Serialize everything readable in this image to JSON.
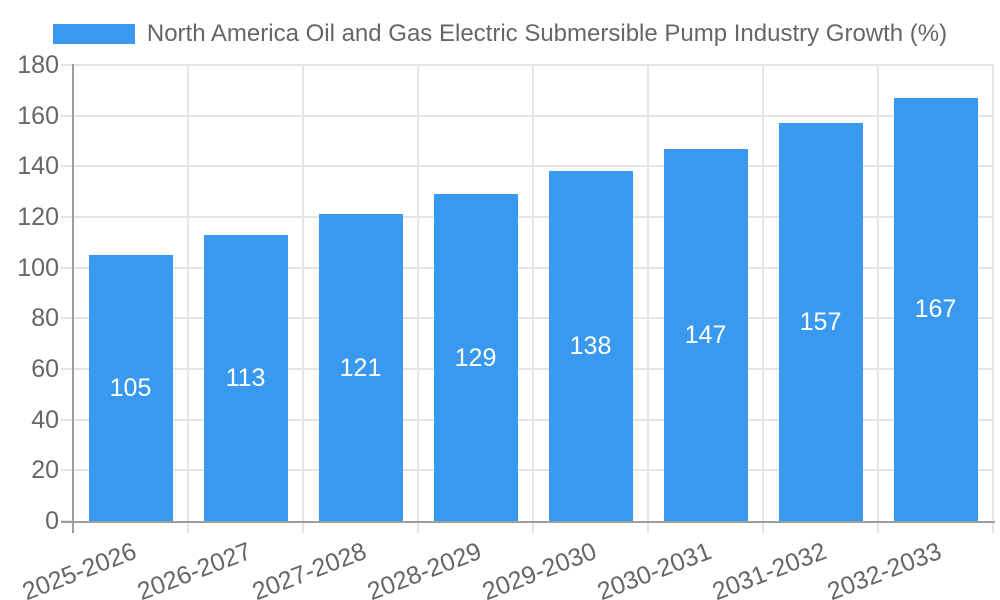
{
  "legend": {
    "label": "North America Oil and Gas Electric Submersible Pump Industry Growth (%)"
  },
  "chart_data": {
    "type": "bar",
    "title": "North America Oil and Gas Electric Submersible Pump Industry Growth (%)",
    "categories": [
      "2025-2026",
      "2026-2027",
      "2027-2028",
      "2028-2029",
      "2029-2030",
      "2030-2031",
      "2031-2032",
      "2032-2033"
    ],
    "values": [
      105,
      113,
      121,
      129,
      138,
      147,
      157,
      167
    ],
    "value_labels": [
      "105",
      "113",
      "121",
      "129",
      "138",
      "147",
      "157",
      "167"
    ],
    "y_tick_labels": [
      "0",
      "20",
      "40",
      "60",
      "80",
      "100",
      "120",
      "140",
      "160",
      "180"
    ],
    "xlabel": "",
    "ylabel": "",
    "ylim": [
      0,
      180
    ],
    "ytick_step": 20,
    "grid": true,
    "legend_position": "top-center",
    "colors": {
      "bar": "#3999EE",
      "value_label": "#FFFFFF",
      "axis_text": "#666666",
      "axis_line": "#9E9E9E",
      "grid": "#E4E4E4",
      "background": "#FFFFFF"
    }
  }
}
